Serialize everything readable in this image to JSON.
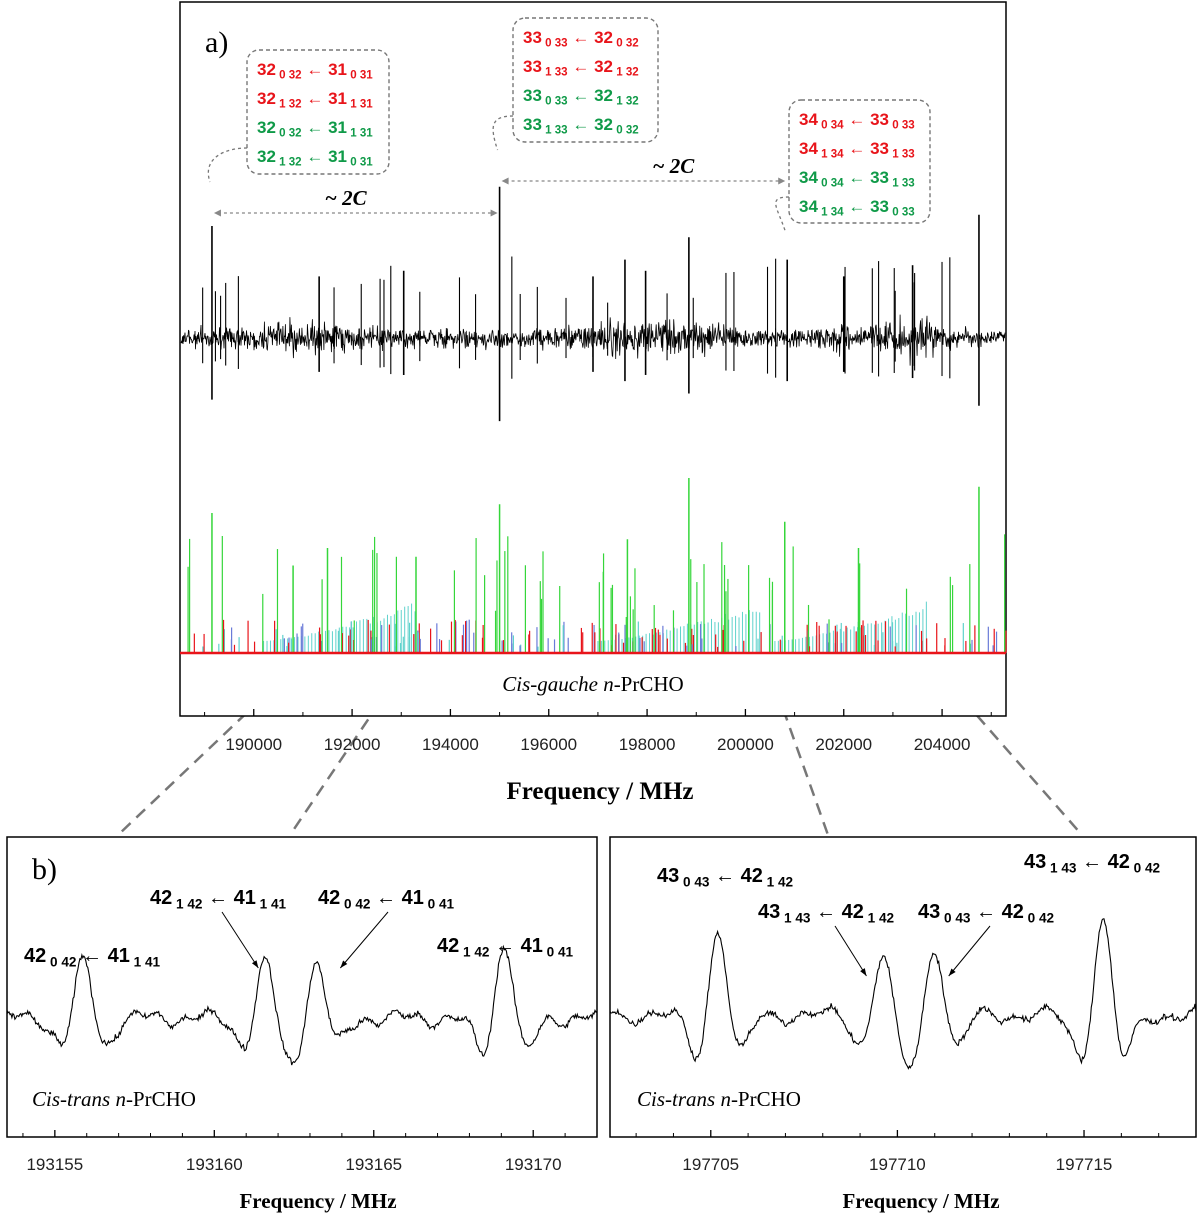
{
  "chart_data": [
    {
      "panel": "a)",
      "type": "line",
      "title": "",
      "xlabel": "Frequency / MHz",
      "ylabel": "",
      "xlim": [
        188500,
        205300
      ],
      "x_ticks": [
        190000,
        192000,
        194000,
        196000,
        198000,
        200000,
        202000,
        204000
      ],
      "x_tick_labels": [
        "190000",
        "192000",
        "194000",
        "196000",
        "198000",
        "200000",
        "202000",
        "204000"
      ],
      "grid": false,
      "series": [
        {
          "values_kind": "experimental spectrum",
          "x": [
            189150,
            191330,
            193050,
            195000,
            196900,
            197550,
            197970,
            198850,
            200850,
            202000,
            203400,
            204750
          ],
          "y": [
            1.0,
            0.55,
            0.6,
            1.35,
            0.55,
            0.7,
            0.6,
            0.9,
            0.7,
            0.55,
            0.65,
            1.1
          ]
        },
        {
          "values_kind": "simulated stick spectrum",
          "x": [
            189150,
            190800,
            191500,
            193300,
            195000,
            197600,
            198850,
            200800,
            202300,
            204750
          ],
          "y": [
            0.8,
            0.5,
            0.6,
            0.55,
            0.85,
            0.65,
            1.0,
            0.75,
            0.6,
            0.95
          ]
        }
      ],
      "inner_label": {
        "italic": "Cis-gauche",
        "italic_n": "n",
        "rest": "-PrCHO"
      },
      "annotations": [
        {
          "spacing_label": "~ 2C",
          "from_x": 189150,
          "to_x": 195000
        },
        {
          "spacing_label": "~ 2C",
          "from_x": 195000,
          "to_x": 200850
        }
      ],
      "transition_groups": [
        {
          "at_x": 189150,
          "lines": [
            {
              "color": "#e8141a",
              "upper": "32",
              "upper_sub": "0 32",
              "lower": "31",
              "lower_sub": "0 31"
            },
            {
              "color": "#e8141a",
              "upper": "32",
              "upper_sub": "1 32",
              "lower": "31",
              "lower_sub": "1 31"
            },
            {
              "color": "#0f9a48",
              "upper": "32",
              "upper_sub": "0 32",
              "lower": "31",
              "lower_sub": "1 31"
            },
            {
              "color": "#0f9a48",
              "upper": "32",
              "upper_sub": "1 32",
              "lower": "31",
              "lower_sub": "0 31"
            }
          ]
        },
        {
          "at_x": 195000,
          "lines": [
            {
              "color": "#e8141a",
              "upper": "33",
              "upper_sub": "0 33",
              "lower": "32",
              "lower_sub": "0 32"
            },
            {
              "color": "#e8141a",
              "upper": "33",
              "upper_sub": "1 33",
              "lower": "32",
              "lower_sub": "1 32"
            },
            {
              "color": "#0f9a48",
              "upper": "33",
              "upper_sub": "0 33",
              "lower": "32",
              "lower_sub": "1 32"
            },
            {
              "color": "#0f9a48",
              "upper": "33",
              "upper_sub": "1 33",
              "lower": "32",
              "lower_sub": "0 32"
            }
          ]
        },
        {
          "at_x": 200850,
          "lines": [
            {
              "color": "#e8141a",
              "upper": "34",
              "upper_sub": "0 34",
              "lower": "33",
              "lower_sub": "0 33"
            },
            {
              "color": "#e8141a",
              "upper": "34",
              "upper_sub": "1 34",
              "lower": "33",
              "lower_sub": "1 33"
            },
            {
              "color": "#0f9a48",
              "upper": "34",
              "upper_sub": "0 34",
              "lower": "33",
              "lower_sub": "1 33"
            },
            {
              "color": "#0f9a48",
              "upper": "34",
              "upper_sub": "1 34",
              "lower": "33",
              "lower_sub": "0 33"
            }
          ]
        }
      ]
    },
    {
      "panel": "b)",
      "type": "line",
      "title": "",
      "xlabel": "Frequency / MHz",
      "ylabel": "",
      "xlim": [
        193153.5,
        193172.0
      ],
      "x_ticks": [
        193155,
        193160,
        193165,
        193170
      ],
      "x_tick_labels": [
        "193155",
        "193160",
        "193165",
        "193170"
      ],
      "grid": false,
      "series": [
        {
          "values_kind": "expanded experimental spectrum",
          "x": [
            193155.9,
            193161.6,
            193163.2,
            193169.1
          ],
          "y": [
            0.55,
            0.55,
            0.55,
            0.75
          ]
        }
      ],
      "inner_label": {
        "italic": "Cis-trans",
        "italic_n": "n",
        "rest": "-PrCHO"
      },
      "transitions": [
        {
          "upper": "42",
          "upper_sub": "0 42",
          "lower": "41",
          "lower_sub": "1 41",
          "at_x": 193155.9
        },
        {
          "upper": "42",
          "upper_sub": "1 42",
          "lower": "41",
          "lower_sub": "1 41",
          "at_x": 193161.6
        },
        {
          "upper": "42",
          "upper_sub": "0 42",
          "lower": "41",
          "lower_sub": "0 41",
          "at_x": 193163.2
        },
        {
          "upper": "42",
          "upper_sub": "1 42",
          "lower": "41",
          "lower_sub": "0 41",
          "at_x": 193169.1
        }
      ]
    },
    {
      "panel": "",
      "type": "line",
      "title": "",
      "xlabel": "Frequency / MHz",
      "ylabel": "",
      "xlim": [
        197702.3,
        197718.0
      ],
      "x_ticks": [
        197705,
        197710,
        197715
      ],
      "x_tick_labels": [
        "197705",
        "197710",
        "197715"
      ],
      "grid": false,
      "series": [
        {
          "values_kind": "expanded experimental spectrum",
          "x": [
            197705.2,
            197709.6,
            197711.0,
            197715.5
          ],
          "y": [
            0.85,
            0.6,
            0.7,
            0.95
          ]
        }
      ],
      "inner_label": {
        "italic": "Cis-trans",
        "italic_n": "n",
        "rest": "-PrCHO"
      },
      "transitions": [
        {
          "upper": "43",
          "upper_sub": "0 43",
          "lower": "42",
          "lower_sub": "1 42",
          "at_x": 197705.2
        },
        {
          "upper": "43",
          "upper_sub": "1 43",
          "lower": "42",
          "lower_sub": "1 42",
          "at_x": 197709.6
        },
        {
          "upper": "43",
          "upper_sub": "0 43",
          "lower": "42",
          "lower_sub": "0 42",
          "at_x": 197711.0
        },
        {
          "upper": "43",
          "upper_sub": "1 43",
          "lower": "42",
          "lower_sub": "0 42",
          "at_x": 197715.5
        }
      ]
    }
  ],
  "colors": {
    "red": "#e8141a",
    "green": "#0f9a48",
    "cyan": "#5fd2cc",
    "blue": "#6a7bd8",
    "lightgreen": "#35d63a"
  },
  "arrow_glyph": "←"
}
